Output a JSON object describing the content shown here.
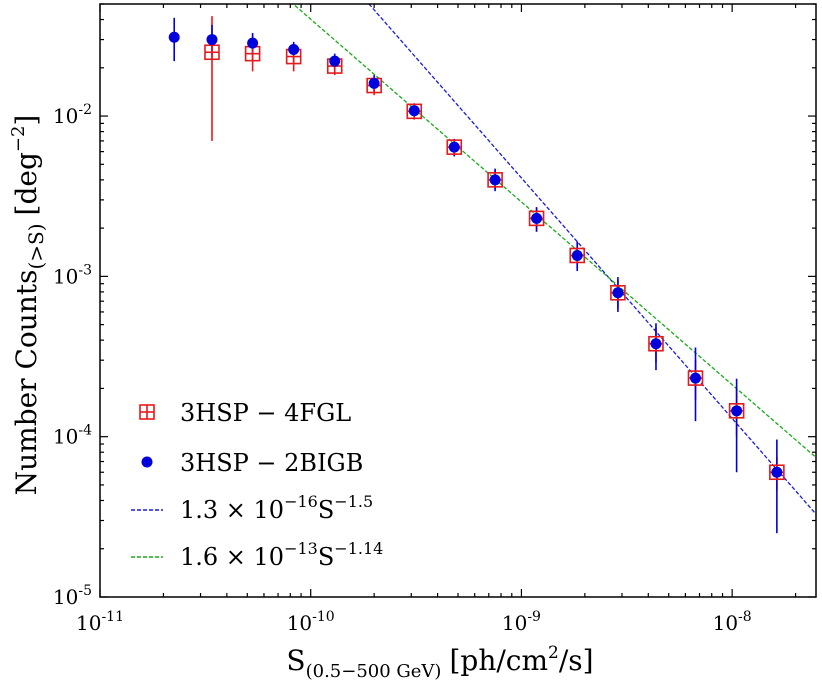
{
  "chart_data": {
    "type": "scatter",
    "x_scale": "log",
    "y_scale": "log",
    "xlim": [
      1e-11,
      2.5e-08
    ],
    "ylim": [
      1e-05,
      0.05
    ],
    "xlabel": {
      "main": "S",
      "sub": "(0.5−500 GeV)",
      "unit": "[ph/cm",
      "unit_sup": "2",
      "unit_end": "/s]"
    },
    "ylabel": {
      "main": "Number Counts",
      "sub": "(>S)",
      "unit": "[deg",
      "unit_sup": "−2",
      "unit_end": "]"
    },
    "x_ticks": [
      {
        "value": 1e-11,
        "base": "10",
        "exp": "-11"
      },
      {
        "value": 1e-10,
        "base": "10",
        "exp": "-10"
      },
      {
        "value": 1e-09,
        "base": "10",
        "exp": "-9"
      },
      {
        "value": 1e-08,
        "base": "10",
        "exp": "-8"
      }
    ],
    "y_ticks": [
      {
        "value": 1e-05,
        "base": "10",
        "exp": "-5"
      },
      {
        "value": 0.0001,
        "base": "10",
        "exp": "-4"
      },
      {
        "value": 0.001,
        "base": "10",
        "exp": "-3"
      },
      {
        "value": 0.01,
        "base": "10",
        "exp": "-2"
      }
    ],
    "series": [
      {
        "name": "3HSP − 4FGL",
        "color": "#e41a1c",
        "marker": "square-plus",
        "points": [
          {
            "x": 3.4e-11,
            "y": 0.025,
            "ylo": 0.007,
            "yhi": 0.042
          },
          {
            "x": 5.3e-11,
            "y": 0.0245,
            "ylo": 0.019,
            "yhi": 0.032
          },
          {
            "x": 8.3e-11,
            "y": 0.0235,
            "ylo": 0.019,
            "yhi": 0.028
          },
          {
            "x": 1.3e-10,
            "y": 0.0205,
            "ylo": 0.018,
            "yhi": 0.023
          },
          {
            "x": 2e-10,
            "y": 0.0155,
            "ylo": 0.0135,
            "yhi": 0.0175
          },
          {
            "x": 3.1e-10,
            "y": 0.0107,
            "ylo": 0.0095,
            "yhi": 0.012
          },
          {
            "x": 4.8e-10,
            "y": 0.0064,
            "ylo": 0.0056,
            "yhi": 0.0072
          },
          {
            "x": 7.5e-10,
            "y": 0.004,
            "ylo": 0.0035,
            "yhi": 0.0046
          },
          {
            "x": 1.18e-09,
            "y": 0.0023,
            "ylo": 0.0019,
            "yhi": 0.0027
          },
          {
            "x": 1.84e-09,
            "y": 0.00135,
            "ylo": 0.00112,
            "yhi": 0.0016
          },
          {
            "x": 2.87e-09,
            "y": 0.00079,
            "ylo": 0.00063,
            "yhi": 0.00096
          },
          {
            "x": 4.35e-09,
            "y": 0.00038,
            "ylo": 0.00029,
            "yhi": 0.00048
          },
          {
            "x": 6.7e-09,
            "y": 0.000232,
            "ylo": 0.00017,
            "yhi": 0.0003
          },
          {
            "x": 1.05e-08,
            "y": 0.000145,
            "ylo": 0.0001,
            "yhi": 0.0002
          },
          {
            "x": 1.63e-08,
            "y": 6e-05,
            "ylo": 4.6e-05,
            "yhi": 7.5e-05
          }
        ]
      },
      {
        "name": "3HSP − 2BIGB",
        "color": "#0000dd",
        "marker": "circle",
        "points": [
          {
            "x": 2.25e-11,
            "y": 0.031,
            "ylo": 0.022,
            "yhi": 0.041
          },
          {
            "x": 3.4e-11,
            "y": 0.03,
            "ylo": 0.024,
            "yhi": 0.037
          },
          {
            "x": 5.3e-11,
            "y": 0.0285,
            "ylo": 0.025,
            "yhi": 0.033
          },
          {
            "x": 8.3e-11,
            "y": 0.026,
            "ylo": 0.023,
            "yhi": 0.029
          },
          {
            "x": 1.3e-10,
            "y": 0.022,
            "ylo": 0.0195,
            "yhi": 0.0245
          },
          {
            "x": 2e-10,
            "y": 0.016,
            "ylo": 0.0142,
            "yhi": 0.018
          },
          {
            "x": 3.1e-10,
            "y": 0.0108,
            "ylo": 0.0096,
            "yhi": 0.012
          },
          {
            "x": 4.8e-10,
            "y": 0.0064,
            "ylo": 0.0056,
            "yhi": 0.0072
          },
          {
            "x": 7.5e-10,
            "y": 0.004,
            "ylo": 0.0034,
            "yhi": 0.0047
          },
          {
            "x": 1.18e-09,
            "y": 0.0023,
            "ylo": 0.0019,
            "yhi": 0.0027
          },
          {
            "x": 1.84e-09,
            "y": 0.00135,
            "ylo": 0.00108,
            "yhi": 0.00165
          },
          {
            "x": 2.87e-09,
            "y": 0.00079,
            "ylo": 0.0006,
            "yhi": 0.00099
          },
          {
            "x": 4.35e-09,
            "y": 0.00038,
            "ylo": 0.00026,
            "yhi": 0.00051
          },
          {
            "x": 6.7e-09,
            "y": 0.000232,
            "ylo": 0.000125,
            "yhi": 0.00036
          },
          {
            "x": 1.05e-08,
            "y": 0.000145,
            "ylo": 6e-05,
            "yhi": 0.00023
          },
          {
            "x": 1.63e-08,
            "y": 6e-05,
            "ylo": 2.5e-05,
            "yhi": 9.6e-05
          }
        ]
      }
    ],
    "fits": [
      {
        "name": "1.3 × 10−16 S−1.5",
        "coef": 1.3e-16,
        "exponent": -1.5,
        "color": "#1a1adb",
        "label_prefix": "1.3 × 10",
        "label_exp1": "−16",
        "label_mid": "S",
        "label_exp2": "−1.5"
      },
      {
        "name": "1.6 × 10−13 S−1.14",
        "coef": 1.6e-13,
        "exponent": -1.14,
        "color": "#1aaa1a",
        "label_prefix": "1.6 × 10",
        "label_exp1": "−13",
        "label_mid": "S",
        "label_exp2": "−1.14"
      }
    ],
    "legend": {
      "placement": "lower-left",
      "entries": [
        "3HSP − 4FGL",
        "3HSP − 2BIGB",
        "1.3 × 10−16 S−1.5",
        "1.6 × 10−13 S−1.14"
      ]
    },
    "grid": false
  }
}
